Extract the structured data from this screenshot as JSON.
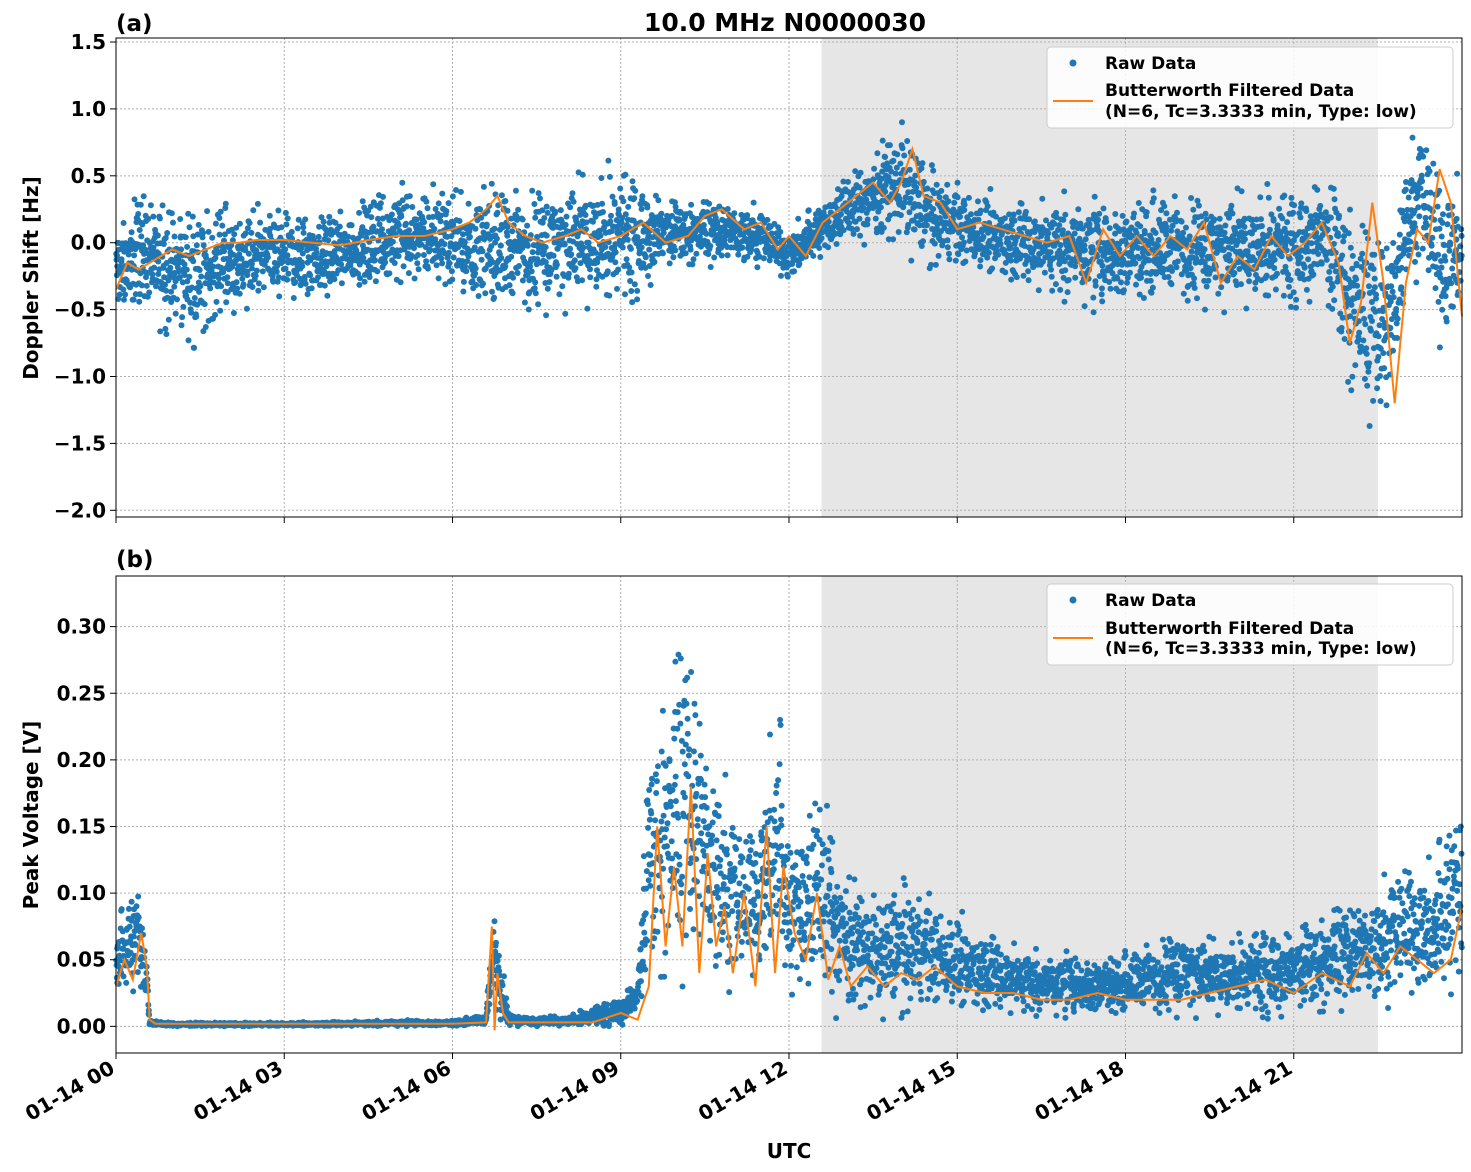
{
  "title": "10.0 MHz N0000030",
  "xlabel": "UTC",
  "x_tick_labels": [
    "01-14 00",
    "01-14 03",
    "01-14 06",
    "01-14 09",
    "01-14 12",
    "01-14 15",
    "01-14 18",
    "01-14 21"
  ],
  "colors": {
    "raw": "#1f77b4",
    "filtered": "#ff7f0e",
    "shade": "#e6e6e6",
    "grid": "#b0b0b0"
  },
  "legend": {
    "raw_label": "Raw Data",
    "filtered_label_line1": "Butterworth Filtered Data",
    "filtered_label_line2": "(N=6, Tc=3.3333 min, Type: low)"
  },
  "chart_data": [
    {
      "type": "scatter",
      "panel_label": "(a)",
      "title": "10.0 MHz N0000030",
      "ylabel": "Doppler Shift [Hz]",
      "x_unit": "hours UTC (01-14)",
      "xlim": [
        0,
        24
      ],
      "ylim": [
        -2.05,
        1.53
      ],
      "y_ticks": [
        1.5,
        1.0,
        0.5,
        0.0,
        -0.5,
        -1.0,
        -1.5,
        -2.0
      ],
      "y_tick_labels": [
        "1.5",
        "1.0",
        "0.5",
        "0.0",
        "−0.5",
        "−1.0",
        "−1.5",
        "−2.0"
      ],
      "shaded_span": [
        12.58,
        22.5
      ],
      "grid": true,
      "legend_position": "upper right",
      "series": [
        {
          "name": "Raw Data",
          "kind": "scatter",
          "envelope": {
            "x": [
              0,
              0.5,
              1,
              1.5,
              2,
              3,
              4,
              5,
              6,
              6.5,
              6.8,
              7,
              8,
              9,
              9.5,
              10,
              11,
              11.5,
              12,
              12.5,
              13,
              13.5,
              14,
              14.5,
              15,
              16,
              17,
              17.5,
              18,
              19,
              20,
              21,
              21.5,
              22,
              22.3,
              22.7,
              23,
              23.3,
              23.6,
              24
            ],
            "high": [
              0.2,
              0.4,
              0.35,
              0.35,
              0.3,
              0.3,
              0.3,
              0.45,
              0.45,
              0.5,
              0.6,
              0.5,
              0.55,
              0.65,
              0.5,
              0.35,
              0.35,
              0.3,
              0.15,
              0.3,
              0.55,
              0.7,
              0.95,
              0.65,
              0.45,
              0.4,
              0.45,
              0.4,
              0.45,
              0.45,
              0.45,
              0.45,
              0.6,
              0.45,
              0.2,
              0.3,
              0.7,
              1.0,
              0.8,
              0.5
            ],
            "low": [
              -0.6,
              -0.55,
              -0.75,
              -0.85,
              -0.55,
              -0.5,
              -0.45,
              -0.35,
              -0.4,
              -0.55,
              -0.7,
              -0.6,
              -0.55,
              -0.55,
              -0.35,
              -0.2,
              -0.2,
              -0.2,
              -0.35,
              -0.15,
              -0.05,
              0.0,
              -0.1,
              -0.2,
              -0.25,
              -0.35,
              -0.5,
              -0.55,
              -0.5,
              -0.5,
              -0.55,
              -0.5,
              -0.45,
              -1.2,
              -1.4,
              -1.6,
              -0.4,
              -0.3,
              -1.0,
              -0.6
            ]
          }
        },
        {
          "name": "Butterworth Filtered Data",
          "kind": "line",
          "x": [
            0,
            0.2,
            0.4,
            0.6,
            0.8,
            1.0,
            1.3,
            1.6,
            1.9,
            2.2,
            2.5,
            3.0,
            3.5,
            4.0,
            4.5,
            5.0,
            5.5,
            6.0,
            6.3,
            6.6,
            6.8,
            7.0,
            7.3,
            7.6,
            8.0,
            8.3,
            8.6,
            9.0,
            9.4,
            9.8,
            10.2,
            10.5,
            10.8,
            11.2,
            11.5,
            11.8,
            12.0,
            12.3,
            12.6,
            12.9,
            13.2,
            13.5,
            13.8,
            14.0,
            14.2,
            14.4,
            14.7,
            15.0,
            15.4,
            15.8,
            16.2,
            16.6,
            17.0,
            17.3,
            17.6,
            17.9,
            18.2,
            18.5,
            18.8,
            19.1,
            19.4,
            19.7,
            20.0,
            20.3,
            20.6,
            20.9,
            21.2,
            21.5,
            21.8,
            22.0,
            22.2,
            22.4,
            22.6,
            22.8,
            23.0,
            23.2,
            23.4,
            23.6,
            23.8,
            24.0
          ],
          "y": [
            -0.35,
            -0.15,
            -0.2,
            -0.15,
            -0.1,
            -0.05,
            -0.1,
            -0.05,
            0.0,
            0.0,
            0.02,
            0.02,
            0.0,
            -0.02,
            0.02,
            0.05,
            0.05,
            0.1,
            0.15,
            0.25,
            0.35,
            0.15,
            0.05,
            0.0,
            0.05,
            0.1,
            0.0,
            0.05,
            0.15,
            0.0,
            0.05,
            0.2,
            0.25,
            0.1,
            0.15,
            -0.05,
            0.05,
            -0.1,
            0.15,
            0.25,
            0.35,
            0.45,
            0.3,
            0.45,
            0.7,
            0.35,
            0.3,
            0.1,
            0.15,
            0.1,
            0.05,
            0.0,
            0.05,
            -0.3,
            0.1,
            -0.1,
            0.05,
            -0.1,
            0.05,
            -0.05,
            0.15,
            -0.3,
            -0.1,
            -0.2,
            0.05,
            -0.1,
            0.0,
            0.15,
            -0.15,
            -0.75,
            -0.45,
            0.3,
            -0.3,
            -1.2,
            -0.3,
            0.1,
            0.0,
            0.55,
            0.3,
            -0.55
          ]
        }
      ]
    },
    {
      "type": "scatter",
      "panel_label": "(b)",
      "ylabel": "Peak Voltage [V]",
      "x_unit": "hours UTC (01-14)",
      "xlim": [
        0,
        24
      ],
      "ylim": [
        -0.02,
        0.338
      ],
      "y_ticks": [
        0.0,
        0.05,
        0.1,
        0.15,
        0.2,
        0.25,
        0.3
      ],
      "y_tick_labels": [
        "0.00",
        "0.05",
        "0.10",
        "0.15",
        "0.20",
        "0.25",
        "0.30"
      ],
      "shaded_span": [
        12.58,
        22.5
      ],
      "grid": true,
      "legend_position": "upper right",
      "series": [
        {
          "name": "Raw Data",
          "kind": "scatter",
          "envelope": {
            "x": [
              0,
              0.2,
              0.4,
              0.55,
              0.6,
              1,
              2,
              3,
              4,
              5,
              6,
              6.6,
              6.75,
              6.9,
              7,
              7.5,
              8,
              8.5,
              9,
              9.3,
              9.5,
              9.7,
              10,
              10.2,
              10.5,
              10.8,
              11.2,
              11.5,
              11.8,
              12.0,
              12.3,
              12.6,
              12.9,
              13.2,
              13.6,
              14,
              14.5,
              15,
              15.5,
              16,
              16.5,
              17,
              17.5,
              18,
              18.5,
              19,
              19.5,
              20,
              20.5,
              21,
              21.5,
              22,
              22.5,
              23,
              23.5,
              24
            ],
            "high": [
              0.08,
              0.1,
              0.12,
              0.06,
              0.005,
              0.003,
              0.003,
              0.003,
              0.004,
              0.005,
              0.005,
              0.01,
              0.115,
              0.05,
              0.01,
              0.008,
              0.008,
              0.015,
              0.025,
              0.04,
              0.22,
              0.26,
              0.3,
              0.32,
              0.25,
              0.2,
              0.16,
              0.19,
              0.26,
              0.15,
              0.18,
              0.2,
              0.14,
              0.11,
              0.1,
              0.12,
              0.1,
              0.09,
              0.08,
              0.07,
              0.06,
              0.06,
              0.06,
              0.06,
              0.07,
              0.08,
              0.07,
              0.07,
              0.08,
              0.08,
              0.09,
              0.1,
              0.11,
              0.14,
              0.13,
              0.2
            ],
            "low": [
              0.01,
              0.02,
              0.02,
              0.01,
              0.0,
              0.0,
              0.0,
              0.0,
              0.0,
              0.0,
              0.0,
              0.0,
              0.0,
              0.0,
              0.0,
              0.0,
              0.0,
              0.0,
              0.0,
              0.005,
              0.02,
              0.02,
              0.02,
              0.02,
              0.02,
              0.02,
              0.02,
              0.02,
              0.02,
              0.015,
              0.01,
              0.01,
              0.005,
              0.005,
              0.005,
              0.005,
              0.005,
              0.005,
              0.005,
              0.005,
              0.005,
              0.005,
              0.005,
              0.005,
              0.005,
              0.005,
              0.005,
              0.005,
              0.005,
              0.005,
              0.005,
              0.01,
              0.01,
              0.01,
              0.01,
              0.015
            ]
          }
        },
        {
          "name": "Butterworth Filtered Data",
          "kind": "line",
          "x": [
            0,
            0.15,
            0.3,
            0.45,
            0.55,
            0.6,
            0.7,
            1,
            2,
            3,
            4,
            5,
            6,
            6.6,
            6.7,
            6.75,
            6.8,
            6.9,
            7.0,
            7.5,
            8,
            8.5,
            9,
            9.3,
            9.5,
            9.65,
            9.8,
            9.95,
            10.1,
            10.25,
            10.4,
            10.55,
            10.7,
            10.85,
            11.0,
            11.2,
            11.4,
            11.6,
            11.75,
            11.9,
            12.1,
            12.3,
            12.5,
            12.7,
            12.9,
            13.1,
            13.4,
            13.7,
            14.0,
            14.3,
            14.6,
            15.0,
            15.5,
            16.0,
            16.5,
            17.0,
            17.5,
            18.0,
            18.5,
            19.0,
            19.5,
            20.0,
            20.5,
            21.0,
            21.5,
            22.0,
            22.3,
            22.6,
            22.9,
            23.2,
            23.5,
            23.8,
            24.0
          ],
          "y": [
            0.03,
            0.05,
            0.035,
            0.07,
            0.045,
            0.005,
            0.002,
            0.002,
            0.002,
            0.002,
            0.002,
            0.002,
            0.002,
            0.003,
            0.075,
            -0.003,
            0.04,
            0.01,
            0.003,
            0.003,
            0.003,
            0.003,
            0.01,
            0.005,
            0.03,
            0.15,
            0.06,
            0.12,
            0.06,
            0.18,
            0.04,
            0.13,
            0.06,
            0.09,
            0.04,
            0.1,
            0.03,
            0.15,
            0.04,
            0.12,
            0.07,
            0.05,
            0.1,
            0.035,
            0.06,
            0.03,
            0.045,
            0.03,
            0.04,
            0.035,
            0.045,
            0.03,
            0.025,
            0.025,
            0.02,
            0.02,
            0.025,
            0.02,
            0.02,
            0.02,
            0.025,
            0.03,
            0.035,
            0.025,
            0.04,
            0.03,
            0.055,
            0.04,
            0.06,
            0.05,
            0.04,
            0.05,
            0.09
          ]
        }
      ]
    }
  ]
}
